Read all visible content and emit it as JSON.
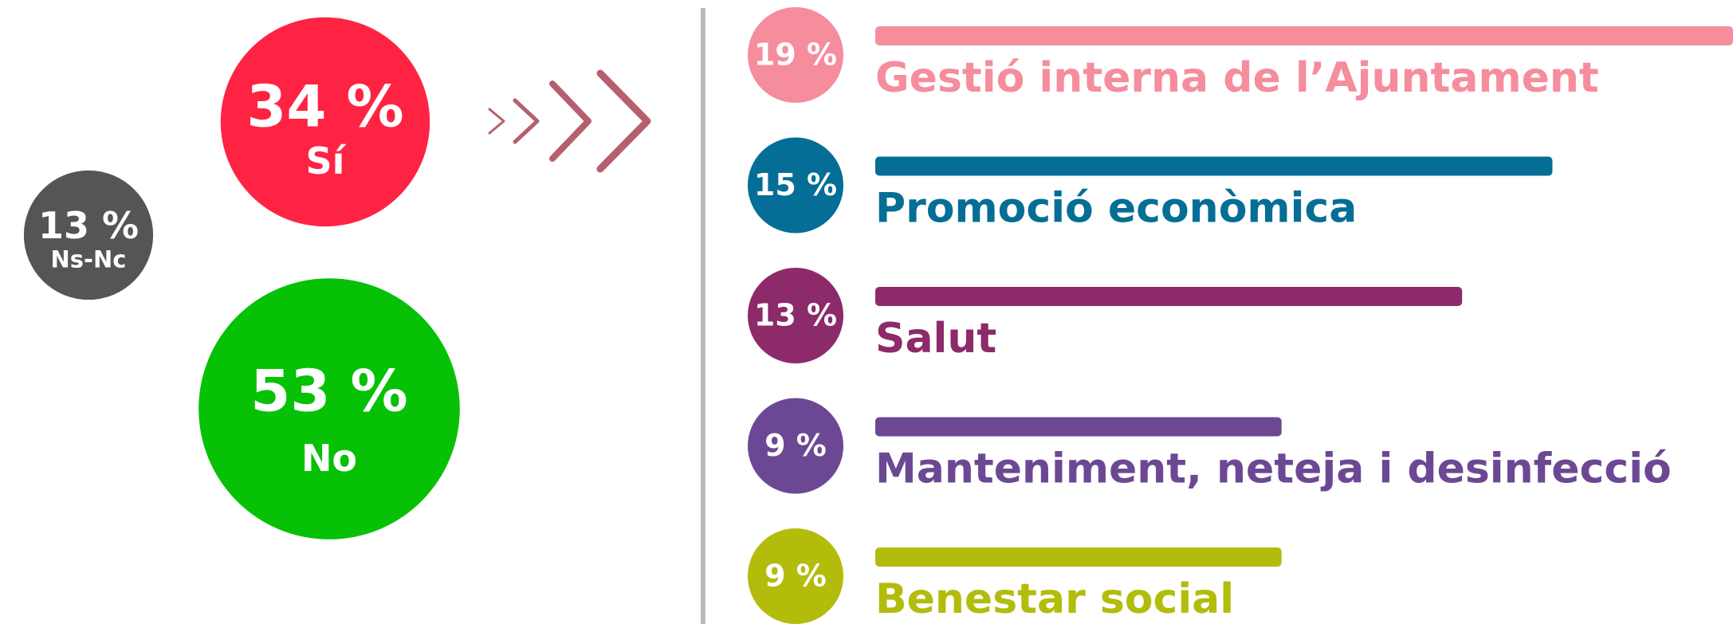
{
  "chart_data": [
    {
      "type": "bubble",
      "categories": [
        "Sí",
        "No",
        "Ns-Nc"
      ],
      "values": [
        34,
        53,
        13
      ],
      "value_labels": [
        "34 %",
        "53 %",
        "13 %"
      ],
      "colors": [
        "#ff2343",
        "#06c106",
        "#555555"
      ]
    },
    {
      "type": "bar",
      "categories": [
        "Gestió interna de l’Ajuntament",
        "Promoció econòmica",
        "Salut",
        "Manteniment, neteja i desinfecció",
        "Benestar social"
      ],
      "values": [
        19,
        15,
        13,
        9,
        9
      ],
      "value_labels": [
        "19 %",
        "15 %",
        "13 %",
        "9 %",
        "9 %"
      ],
      "colors": [
        "#f58d9d",
        "#046e96",
        "#8c2a6a",
        "#6c4894",
        "#b3bc0b"
      ]
    }
  ]
}
